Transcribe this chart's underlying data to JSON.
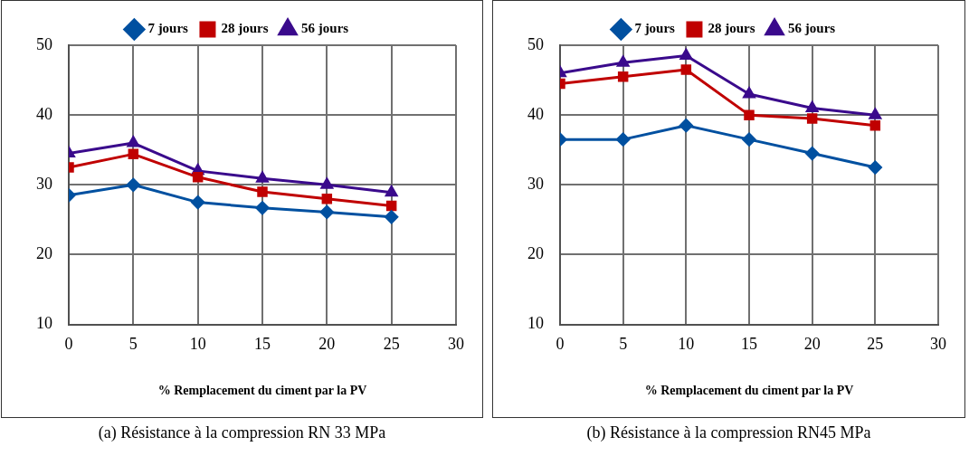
{
  "chart_data": [
    {
      "type": "line",
      "title": "(a) Résistance à la compression RN 33 MPa",
      "xlabel": "% Remplacement du ciment par la PV",
      "x": [
        0,
        5,
        10,
        15,
        20,
        25
      ],
      "xlim": [
        0,
        30
      ],
      "xticks": [
        0,
        5,
        10,
        15,
        20,
        25,
        30
      ],
      "ylim": [
        10,
        50
      ],
      "yticks": [
        10,
        20,
        30,
        40,
        50
      ],
      "grid": true,
      "legend": "top",
      "series": [
        {
          "name": "7 jours",
          "color": "#0050a0",
          "marker": "diamond",
          "values": [
            28.5,
            30,
            27.5,
            26.7,
            26.1,
            25.4
          ]
        },
        {
          "name": "28 jours",
          "color": "#c00000",
          "marker": "square",
          "values": [
            32.5,
            34.4,
            31.1,
            29,
            28,
            27
          ]
        },
        {
          "name": "56 jours",
          "color": "#3a0a8c",
          "marker": "triangle",
          "values": [
            34.5,
            36,
            32,
            30.9,
            30,
            28.9
          ]
        }
      ]
    },
    {
      "type": "line",
      "title": "(b) Résistance à la compression RN45 MPa",
      "xlabel": "% Remplacement du ciment par la PV",
      "x": [
        0,
        5,
        10,
        15,
        20,
        25
      ],
      "xlim": [
        0,
        30
      ],
      "xticks": [
        0,
        5,
        10,
        15,
        20,
        25,
        30
      ],
      "ylim": [
        10,
        50
      ],
      "yticks": [
        10,
        20,
        30,
        40,
        50
      ],
      "grid": true,
      "legend": "top",
      "series": [
        {
          "name": "7 jours",
          "color": "#0050a0",
          "marker": "diamond",
          "values": [
            36.5,
            36.5,
            38.5,
            36.5,
            34.5,
            32.5
          ]
        },
        {
          "name": "28 jours",
          "color": "#c00000",
          "marker": "square",
          "values": [
            44.5,
            45.5,
            46.5,
            40,
            39.5,
            38.5
          ]
        },
        {
          "name": "56 jours",
          "color": "#3a0a8c",
          "marker": "triangle",
          "values": [
            46,
            47.5,
            48.5,
            43,
            41,
            40
          ]
        }
      ]
    }
  ]
}
